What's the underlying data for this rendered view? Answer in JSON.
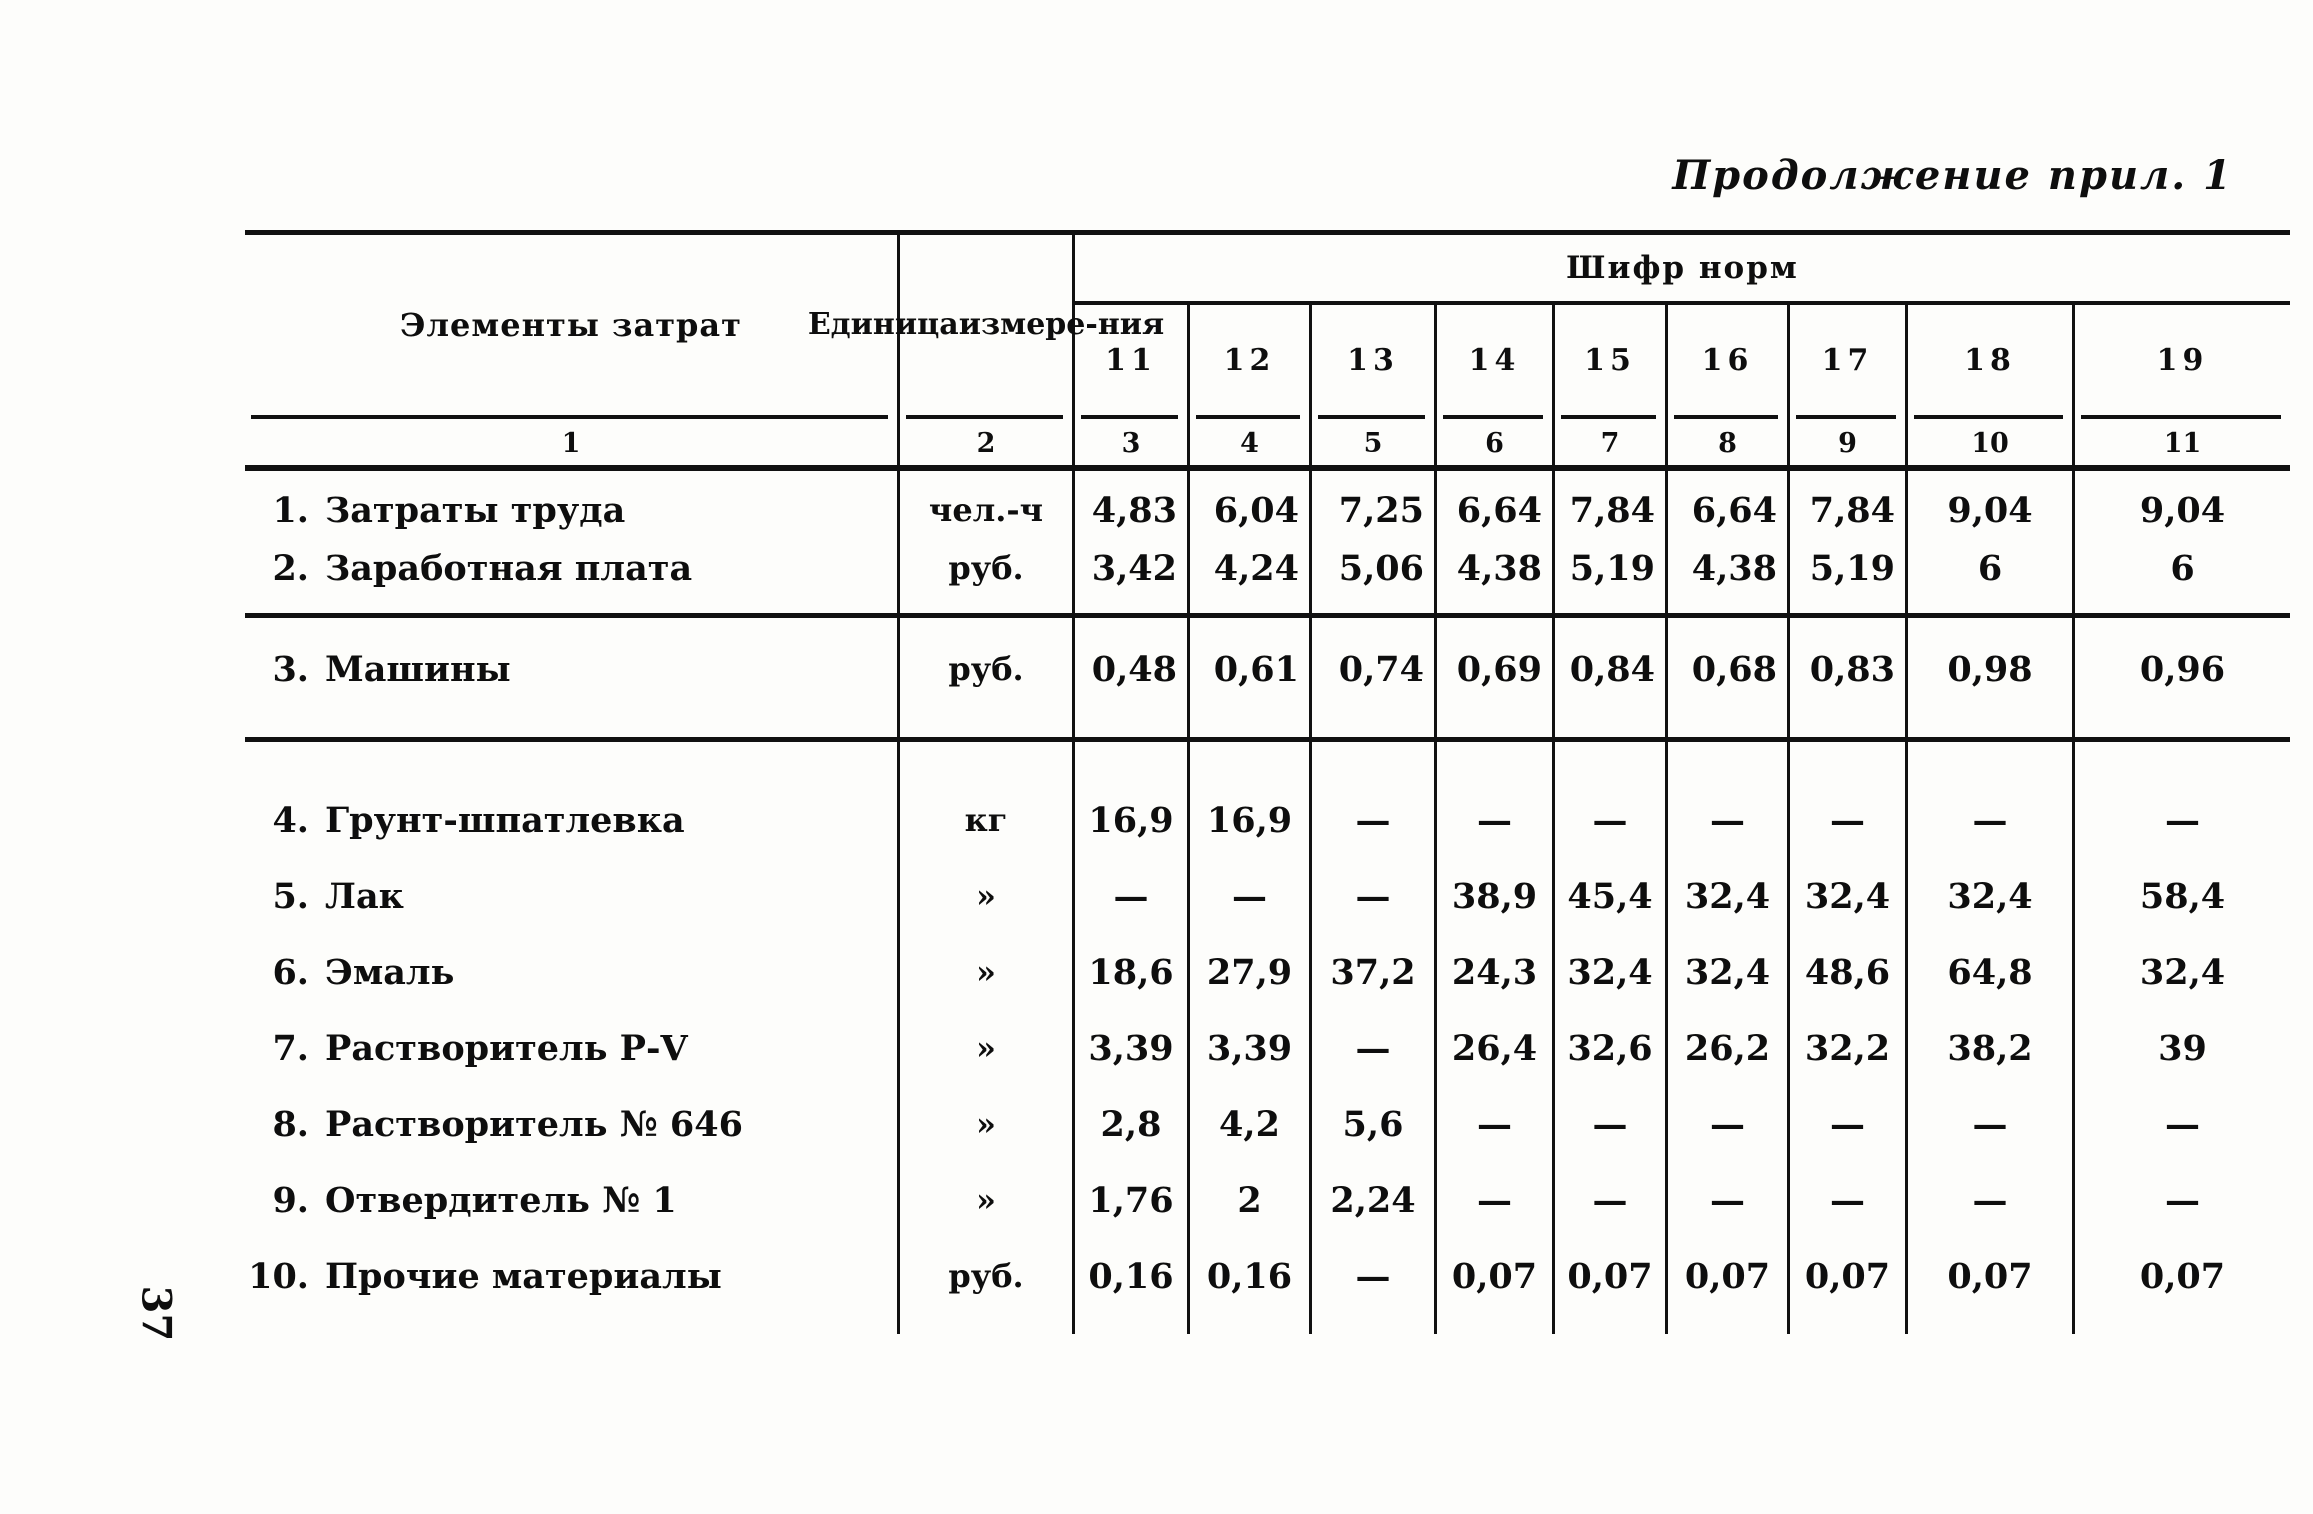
{
  "page": {
    "title": "Продолжение прил. 1",
    "page_number": "37"
  },
  "table": {
    "header": {
      "elements_label": "Элементы затрат",
      "unit_label_lines": [
        "Единица",
        "измере-",
        "ния"
      ],
      "group_title": "Шифр норм",
      "norm_codes": [
        "11",
        "12",
        "13",
        "14",
        "15",
        "16",
        "17",
        "18",
        "19"
      ],
      "numbering": [
        "1",
        "2",
        "3",
        "4",
        "5",
        "6",
        "7",
        "8",
        "9",
        "10",
        "11"
      ]
    },
    "groups": [
      {
        "rows": [
          {
            "num": "1.",
            "label": "Затраты труда",
            "unit": "чел.-ч",
            "values": [
              "4,83",
              "6,04",
              "7,25",
              "6,64",
              "7,84",
              "6,64",
              "7,84",
              "9,04",
              "9,04"
            ]
          },
          {
            "num": "2.",
            "label": "Заработная плата",
            "unit": "руб.",
            "values": [
              "3,42",
              "4,24",
              "5,06",
              "4,38",
              "5,19",
              "4,38",
              "5,19",
              "6",
              "6"
            ]
          }
        ]
      },
      {
        "rows": [
          {
            "num": "3.",
            "label": "Машины",
            "unit": "руб.",
            "values": [
              "0,48",
              "0,61",
              "0,74",
              "0,69",
              "0,84",
              "0,68",
              "0,83",
              "0,98",
              "0,96"
            ]
          }
        ]
      },
      {
        "rows": [
          {
            "num": "4.",
            "label": "Грунт-шпатлевка",
            "unit": "кг",
            "values": [
              "16,9",
              "16,9",
              "—",
              "—",
              "—",
              "—",
              "—",
              "—",
              "—"
            ]
          },
          {
            "num": "5.",
            "label": "Лак",
            "unit": "»",
            "values": [
              "—",
              "—",
              "—",
              "38,9",
              "45,4",
              "32,4",
              "32,4",
              "32,4",
              "58,4"
            ]
          },
          {
            "num": "6.",
            "label": "Эмаль",
            "unit": "»",
            "values": [
              "18,6",
              "27,9",
              "37,2",
              "24,3",
              "32,4",
              "32,4",
              "48,6",
              "64,8",
              "32,4"
            ]
          },
          {
            "num": "7.",
            "label": "Растворитель Р-V",
            "unit": "»",
            "values": [
              "3,39",
              "3,39",
              "—",
              "26,4",
              "32,6",
              "26,2",
              "32,2",
              "38,2",
              "39"
            ]
          },
          {
            "num": "8.",
            "label": "Растворитель № 646",
            "unit": "»",
            "values": [
              "2,8",
              "4,2",
              "5,6",
              "—",
              "—",
              "—",
              "—",
              "—",
              "—"
            ]
          },
          {
            "num": "9.",
            "label": "Отвердитель № 1",
            "unit": "»",
            "values": [
              "1,76",
              "2",
              "2,24",
              "—",
              "—",
              "—",
              "—",
              "—",
              "—"
            ]
          },
          {
            "num": "10.",
            "label": "Прочие материалы",
            "unit": "руб.",
            "values": [
              "0,16",
              "0,16",
              "—",
              "0,07",
              "0,07",
              "0,07",
              "0,07",
              "0,07",
              "0,07"
            ]
          }
        ]
      }
    ]
  }
}
